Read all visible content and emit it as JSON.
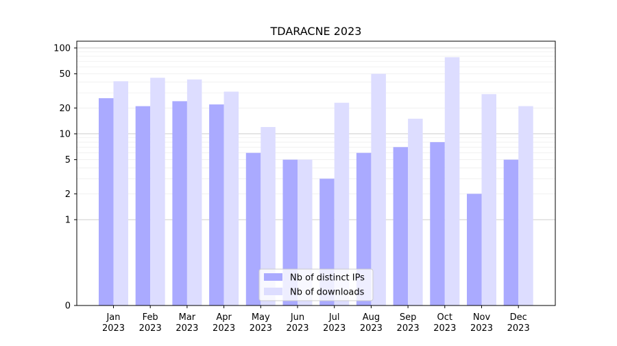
{
  "chart_data": {
    "type": "bar",
    "title": "TDARACNE 2023",
    "xlabel": "",
    "ylabel": "",
    "y_scale": "symlog",
    "ylim": [
      0,
      120
    ],
    "y_ticks": [
      0,
      1,
      2,
      5,
      10,
      20,
      50,
      100
    ],
    "grid": true,
    "legend_position": "lower center",
    "categories": [
      "Jan\n2023",
      "Feb\n2023",
      "Mar\n2023",
      "Apr\n2023",
      "May\n2023",
      "Jun\n2023",
      "Jul\n2023",
      "Aug\n2023",
      "Sep\n2023",
      "Oct\n2023",
      "Nov\n2023",
      "Dec\n2023"
    ],
    "series": [
      {
        "name": "Nb of distinct IPs",
        "color": "#aaaaff",
        "values": [
          26,
          21,
          24,
          22,
          6,
          5,
          3,
          6,
          7,
          8,
          2,
          5
        ]
      },
      {
        "name": "Nb of downloads",
        "color": "#ddddff",
        "values": [
          41,
          45,
          43,
          31,
          12,
          5,
          23,
          50,
          15,
          78,
          29,
          21
        ]
      }
    ]
  }
}
